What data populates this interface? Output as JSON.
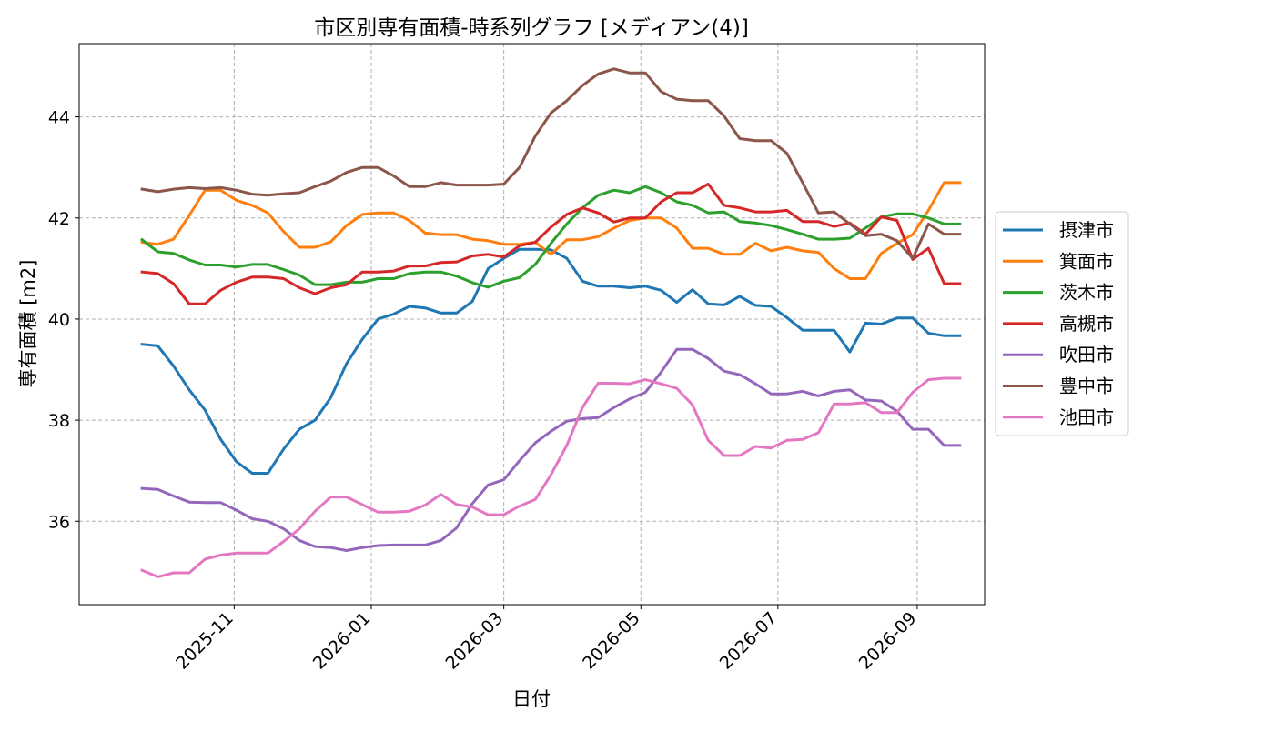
{
  "chart_data": {
    "type": "line",
    "title": "市区別専有面積-時系列グラフ [メディアン(4)]",
    "xlabel": "日付",
    "ylabel": "専有面積 [m2]",
    "x_tick_labels": [
      "2025-11",
      "2026-01",
      "2026-03",
      "2026-05",
      "2026-07",
      "2026-09"
    ],
    "y_ticks": [
      36,
      38,
      40,
      42,
      44
    ],
    "ylim": [
      34.35,
      45.45
    ],
    "grid": true,
    "legend_position": "right",
    "x": [
      "2025-09-21",
      "2025-09-28",
      "2025-10-05",
      "2025-10-12",
      "2025-10-19",
      "2025-10-26",
      "2025-11-02",
      "2025-11-09",
      "2025-11-16",
      "2025-11-23",
      "2025-11-30",
      "2025-12-07",
      "2025-12-14",
      "2025-12-21",
      "2025-12-28",
      "2026-01-04",
      "2026-01-11",
      "2026-01-18",
      "2026-01-25",
      "2026-02-01",
      "2026-02-08",
      "2026-02-15",
      "2026-02-22",
      "2026-03-01",
      "2026-03-08",
      "2026-03-15",
      "2026-03-22",
      "2026-03-29",
      "2026-04-05",
      "2026-04-12",
      "2026-04-19",
      "2026-04-26",
      "2026-05-03",
      "2026-05-10",
      "2026-05-17",
      "2026-05-24",
      "2026-05-31",
      "2026-06-07",
      "2026-06-14",
      "2026-06-21",
      "2026-06-28",
      "2026-07-05",
      "2026-07-12",
      "2026-07-19",
      "2026-07-26",
      "2026-08-02",
      "2026-08-09",
      "2026-08-16",
      "2026-08-23",
      "2026-08-30",
      "2026-09-06",
      "2026-09-13",
      "2026-09-20"
    ],
    "series": [
      {
        "name": "摂津市",
        "color": "#1f77b4",
        "values": [
          39.5,
          39.47,
          39.07,
          38.6,
          38.2,
          37.62,
          37.18,
          36.95,
          36.95,
          37.43,
          37.82,
          38.0,
          38.45,
          39.12,
          39.6,
          40.0,
          40.1,
          40.25,
          40.22,
          40.12,
          40.12,
          40.35,
          41.0,
          41.2,
          41.38,
          41.38,
          41.37,
          41.2,
          40.75,
          40.65,
          40.65,
          40.62,
          40.65,
          40.57,
          40.33,
          40.58,
          40.3,
          40.28,
          40.45,
          40.27,
          40.25,
          40.03,
          39.78,
          39.78,
          39.78,
          39.35,
          39.92,
          39.9,
          40.02,
          40.02,
          39.72,
          39.67,
          39.67
        ]
      },
      {
        "name": "箕面市",
        "color": "#ff7f0e",
        "values": [
          41.52,
          41.48,
          41.58,
          42.05,
          42.55,
          42.55,
          42.35,
          42.25,
          42.1,
          41.73,
          41.42,
          41.42,
          41.53,
          41.85,
          42.07,
          42.1,
          42.1,
          41.95,
          41.7,
          41.67,
          41.67,
          41.58,
          41.55,
          41.48,
          41.48,
          41.52,
          41.28,
          41.57,
          41.57,
          41.63,
          41.8,
          41.95,
          42.0,
          42.0,
          41.8,
          41.4,
          41.4,
          41.28,
          41.28,
          41.5,
          41.35,
          41.42,
          41.35,
          41.32,
          41.0,
          40.8,
          40.8,
          41.3,
          41.5,
          41.67,
          42.15,
          42.7,
          42.7
        ]
      },
      {
        "name": "茨木市",
        "color": "#2ca02c",
        "values": [
          41.57,
          41.33,
          41.3,
          41.17,
          41.07,
          41.07,
          41.03,
          41.08,
          41.08,
          40.98,
          40.87,
          40.68,
          40.68,
          40.73,
          40.73,
          40.8,
          40.8,
          40.9,
          40.93,
          40.93,
          40.85,
          40.72,
          40.63,
          40.75,
          40.82,
          41.08,
          41.5,
          41.88,
          42.2,
          42.45,
          42.55,
          42.5,
          42.62,
          42.5,
          42.32,
          42.25,
          42.1,
          42.12,
          41.93,
          41.9,
          41.85,
          41.77,
          41.68,
          41.58,
          41.58,
          41.6,
          41.8,
          42.02,
          42.08,
          42.08,
          42.0,
          41.88,
          41.88
        ]
      },
      {
        "name": "高槻市",
        "color": "#d62728",
        "values": [
          40.93,
          40.9,
          40.7,
          40.3,
          40.3,
          40.57,
          40.73,
          40.83,
          40.83,
          40.8,
          40.62,
          40.5,
          40.62,
          40.68,
          40.93,
          40.93,
          40.95,
          41.05,
          41.05,
          41.12,
          41.13,
          41.25,
          41.28,
          41.23,
          41.45,
          41.52,
          41.82,
          42.07,
          42.2,
          42.1,
          41.92,
          42.0,
          42.0,
          42.32,
          42.5,
          42.5,
          42.67,
          42.25,
          42.2,
          42.12,
          42.12,
          42.15,
          41.93,
          41.93,
          41.83,
          41.9,
          41.68,
          42.02,
          41.95,
          41.18,
          41.4,
          40.7,
          40.7
        ]
      },
      {
        "name": "吹田市",
        "color": "#9467bd",
        "values": [
          36.65,
          36.63,
          36.5,
          36.38,
          36.37,
          36.37,
          36.22,
          36.05,
          36.0,
          35.85,
          35.62,
          35.5,
          35.48,
          35.42,
          35.48,
          35.52,
          35.53,
          35.53,
          35.53,
          35.62,
          35.87,
          36.35,
          36.72,
          36.82,
          37.2,
          37.55,
          37.78,
          37.98,
          38.03,
          38.05,
          38.25,
          38.42,
          38.55,
          38.95,
          39.4,
          39.4,
          39.22,
          38.97,
          38.9,
          38.72,
          38.52,
          38.52,
          38.57,
          38.48,
          38.57,
          38.6,
          38.4,
          38.38,
          38.18,
          37.82,
          37.82,
          37.5,
          37.5
        ]
      },
      {
        "name": "豊中市",
        "color": "#8c564b",
        "values": [
          42.57,
          42.52,
          42.57,
          42.6,
          42.58,
          42.6,
          42.55,
          42.47,
          42.45,
          42.48,
          42.5,
          42.62,
          42.73,
          42.9,
          43.0,
          43.0,
          42.83,
          42.62,
          42.62,
          42.7,
          42.65,
          42.65,
          42.65,
          42.67,
          43.0,
          43.62,
          44.08,
          44.32,
          44.62,
          44.85,
          44.95,
          44.87,
          44.87,
          44.5,
          44.35,
          44.32,
          44.32,
          44.02,
          43.57,
          43.53,
          43.53,
          43.28,
          42.7,
          42.1,
          42.12,
          41.88,
          41.65,
          41.68,
          41.55,
          41.2,
          41.88,
          41.68,
          41.68
        ]
      },
      {
        "name": "池田市",
        "color": "#e377c2",
        "values": [
          35.03,
          34.9,
          34.98,
          34.98,
          35.25,
          35.33,
          35.37,
          35.37,
          35.37,
          35.6,
          35.85,
          36.2,
          36.48,
          36.48,
          36.33,
          36.18,
          36.18,
          36.2,
          36.32,
          36.53,
          36.33,
          36.28,
          36.13,
          36.13,
          36.3,
          36.43,
          36.92,
          37.5,
          38.25,
          38.73,
          38.73,
          38.72,
          38.8,
          38.72,
          38.63,
          38.3,
          37.6,
          37.3,
          37.3,
          37.48,
          37.45,
          37.6,
          37.62,
          37.75,
          38.32,
          38.32,
          38.35,
          38.15,
          38.15,
          38.55,
          38.8,
          38.83,
          38.83
        ]
      }
    ]
  }
}
